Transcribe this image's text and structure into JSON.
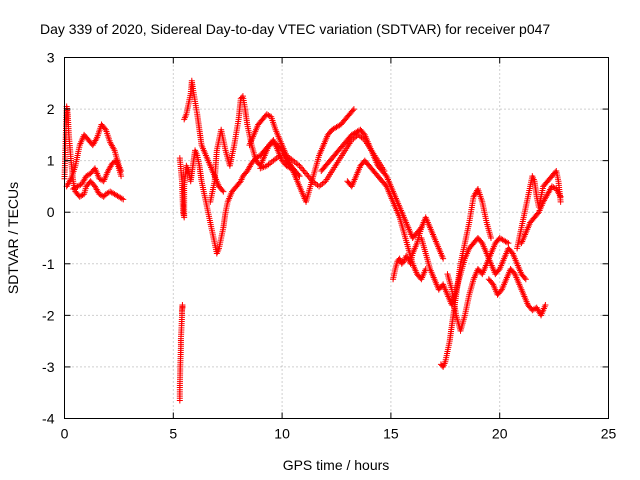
{
  "chart_data": {
    "type": "scatter",
    "title": "Day 339 of 2020, Sidereal Day-to-day VTEC variation (SDTVAR) for receiver p047",
    "xlabel": "GPS time / hours",
    "ylabel": "SDTVAR / TECUs",
    "xlim": [
      0,
      25
    ],
    "ylim": [
      -4,
      3
    ],
    "xticks": [
      0,
      5,
      10,
      15,
      20,
      25
    ],
    "yticks": [
      -4,
      -3,
      -2,
      -1,
      0,
      1,
      2,
      3
    ],
    "xtick_labels": [
      "0",
      "5",
      "10",
      "15",
      "20",
      "25"
    ],
    "ytick_labels": [
      "-4",
      "-3",
      "-2",
      "-1",
      "0",
      "1",
      "2",
      "3"
    ],
    "grid": true,
    "marker": "+",
    "colors": {
      "series": "#ff0000",
      "grid": "#a0a0a0",
      "axis": "#000000"
    },
    "series": [
      {
        "name": "SDTVAR p047",
        "x": [
          0.0,
          0.1,
          0.15,
          0.2,
          0.3,
          0.4,
          0.5,
          0.7,
          0.9,
          1.0,
          1.2,
          1.4,
          1.6,
          1.8,
          1.9,
          2.1,
          2.3,
          2.5,
          2.7
        ],
        "y": [
          0.65,
          2.05,
          1.9,
          1.5,
          1.0,
          0.6,
          0.4,
          0.3,
          0.35,
          0.5,
          0.6,
          0.5,
          0.35,
          0.3,
          0.35,
          0.4,
          0.35,
          0.3,
          0.25
        ]
      },
      {
        "name": "SDTVAR p047",
        "x": [
          0.1,
          0.3,
          0.5,
          0.7,
          0.9,
          1.1,
          1.3,
          1.5,
          1.7,
          1.9,
          2.1,
          2.3,
          2.5,
          2.6
        ],
        "y": [
          0.5,
          0.65,
          0.9,
          1.3,
          1.5,
          1.4,
          1.3,
          1.45,
          1.7,
          1.6,
          1.35,
          1.2,
          0.9,
          0.8
        ]
      },
      {
        "name": "SDTVAR p047",
        "x": [
          0.4,
          0.6,
          0.8,
          1.0,
          1.2,
          1.4,
          1.6,
          1.8,
          2.0,
          2.2,
          2.4,
          2.6
        ],
        "y": [
          0.45,
          0.5,
          0.55,
          0.7,
          0.75,
          0.85,
          0.65,
          0.6,
          0.8,
          0.95,
          1.0,
          0.7
        ]
      },
      {
        "name": "SDTVAR p047",
        "x": [
          5.3,
          5.3,
          5.32,
          5.35,
          5.35,
          5.38,
          5.4,
          5.4,
          5.42,
          5.42
        ],
        "y": [
          -3.65,
          -3.4,
          -3.0,
          -2.6,
          -2.45,
          -2.2,
          -2.0,
          -1.9,
          -1.85,
          -1.8
        ]
      },
      {
        "name": "SDTVAR p047",
        "x": [
          5.3,
          5.4,
          5.45,
          5.5,
          5.5,
          5.6,
          5.7,
          5.8,
          5.9,
          6.0,
          6.1,
          6.2,
          6.3,
          6.4,
          6.5,
          6.6,
          6.7,
          6.8,
          6.9,
          7.0,
          7.1,
          7.2,
          7.3,
          7.4,
          7.5,
          7.7,
          7.9,
          8.1,
          8.2,
          8.4,
          8.6,
          8.8,
          9.0,
          9.2,
          9.4,
          9.6,
          9.8,
          10.0,
          10.2,
          10.4,
          10.6,
          10.8
        ],
        "y": [
          1.05,
          0.6,
          0.0,
          -0.1,
          0.5,
          0.9,
          0.8,
          0.6,
          0.9,
          1.2,
          1.1,
          0.9,
          0.6,
          0.4,
          0.2,
          0.0,
          -0.2,
          -0.4,
          -0.6,
          -0.8,
          -0.7,
          -0.5,
          -0.3,
          0.0,
          0.2,
          0.4,
          0.5,
          0.6,
          0.7,
          0.8,
          0.95,
          1.05,
          1.1,
          1.2,
          1.3,
          1.35,
          1.3,
          1.2,
          1.0,
          0.9,
          0.8,
          0.7
        ]
      },
      {
        "name": "SDTVAR p047",
        "x": [
          5.5,
          5.6,
          5.7,
          5.8,
          5.85,
          5.9,
          6.0,
          6.1,
          6.2,
          6.3,
          6.5,
          6.7,
          6.9,
          7.1,
          7.3
        ],
        "y": [
          1.8,
          1.9,
          2.1,
          2.3,
          2.55,
          2.4,
          2.15,
          1.9,
          1.6,
          1.3,
          1.1,
          0.9,
          0.7,
          0.5,
          0.4
        ]
      },
      {
        "name": "SDTVAR p047",
        "x": [
          6.7,
          6.9,
          7.0,
          7.2,
          7.4,
          7.6,
          7.8,
          8.0,
          8.1,
          8.2,
          8.3,
          8.4,
          8.6,
          8.8,
          9.0,
          9.2,
          9.4,
          9.6,
          9.8,
          10.0,
          10.2,
          10.4,
          10.6
        ],
        "y": [
          0.2,
          0.6,
          1.2,
          1.6,
          1.2,
          0.9,
          1.3,
          1.8,
          2.2,
          2.25,
          2.0,
          1.7,
          1.3,
          1.0,
          0.9,
          1.1,
          1.3,
          1.4,
          1.2,
          1.0,
          0.9,
          0.85,
          0.8
        ]
      },
      {
        "name": "SDTVAR p047",
        "x": [
          8.5,
          8.7,
          8.9,
          9.1,
          9.3,
          9.5,
          9.7,
          9.9,
          10.1,
          10.3,
          10.5,
          10.7,
          10.9,
          11.1,
          11.3,
          11.5,
          11.7,
          11.9,
          12.1,
          12.3,
          12.5,
          12.7,
          12.9,
          13.1,
          13.3
        ],
        "y": [
          1.3,
          1.5,
          1.7,
          1.8,
          1.9,
          1.85,
          1.6,
          1.4,
          1.2,
          1.0,
          0.8,
          0.6,
          0.4,
          0.2,
          0.5,
          0.8,
          1.1,
          1.3,
          1.5,
          1.6,
          1.65,
          1.7,
          1.8,
          1.9,
          2.0
        ]
      },
      {
        "name": "SDTVAR p047",
        "x": [
          9.0,
          9.3,
          9.6,
          9.9,
          10.2,
          10.5,
          10.8,
          11.1,
          11.4,
          11.7,
          12.0,
          12.3,
          12.6,
          12.9,
          13.2,
          13.5,
          13.8,
          14.1,
          14.4,
          14.7
        ],
        "y": [
          0.85,
          0.9,
          1.0,
          1.1,
          1.1,
          1.0,
          0.9,
          0.75,
          0.6,
          0.5,
          0.6,
          0.8,
          1.0,
          1.2,
          1.4,
          1.5,
          1.4,
          1.2,
          1.0,
          0.8
        ]
      },
      {
        "name": "SDTVAR p047",
        "x": [
          11.8,
          12.0,
          12.2,
          12.4,
          12.6,
          12.8,
          13.0,
          13.2,
          13.4,
          13.6,
          13.8,
          14.0,
          14.2,
          14.4,
          14.6,
          14.8,
          15.0,
          15.2,
          15.4,
          15.6,
          15.8,
          16.0,
          16.2,
          16.4
        ],
        "y": [
          0.8,
          0.9,
          1.0,
          1.1,
          1.2,
          1.3,
          1.4,
          1.5,
          1.55,
          1.6,
          1.5,
          1.3,
          1.1,
          0.9,
          0.8,
          0.7,
          0.5,
          0.3,
          0.1,
          -0.1,
          -0.3,
          -0.5,
          -0.4,
          -0.3
        ]
      },
      {
        "name": "SDTVAR p047",
        "x": [
          13.0,
          13.2,
          13.4,
          13.6,
          13.8,
          14.0,
          14.2,
          14.4,
          14.6,
          14.8,
          15.0,
          15.2,
          15.4,
          15.6,
          15.8,
          16.0,
          16.2,
          16.4,
          16.6
        ],
        "y": [
          0.6,
          0.5,
          0.7,
          0.9,
          1.0,
          0.9,
          0.8,
          0.7,
          0.6,
          0.5,
          0.3,
          0.1,
          -0.1,
          -0.4,
          -0.7,
          -1.0,
          -1.2,
          -1.3,
          -1.1
        ]
      },
      {
        "name": "SDTVAR p047",
        "x": [
          15.1,
          15.2,
          15.3,
          15.4,
          15.5,
          15.6,
          15.7,
          15.8,
          15.9,
          16.0,
          16.2,
          16.4,
          16.6,
          16.8,
          17.0,
          17.2,
          17.4
        ],
        "y": [
          -1.3,
          -1.1,
          -0.95,
          -0.9,
          -1.0,
          -0.95,
          -0.85,
          -0.9,
          -1.0,
          -0.8,
          -0.6,
          -0.3,
          -0.1,
          -0.3,
          -0.5,
          -0.7,
          -0.9
        ]
      },
      {
        "name": "SDTVAR p047",
        "x": [
          16.4,
          16.6,
          16.8,
          17.0,
          17.2,
          17.4,
          17.6,
          17.8,
          18.0,
          18.2,
          18.4,
          18.6,
          18.8,
          19.0,
          19.2,
          19.4,
          19.6,
          19.8,
          20.0,
          20.2,
          20.4,
          20.6,
          20.8,
          21.0,
          21.2
        ],
        "y": [
          -0.5,
          -0.8,
          -1.1,
          -1.3,
          -1.5,
          -1.4,
          -1.6,
          -1.8,
          -1.5,
          -1.2,
          -0.9,
          -0.7,
          -0.6,
          -0.5,
          -0.6,
          -0.8,
          -1.0,
          -1.2,
          -1.1,
          -0.9,
          -0.7,
          -0.8,
          -1.0,
          -1.2,
          -1.3
        ]
      },
      {
        "name": "SDTVAR p047",
        "x": [
          17.3,
          17.4,
          17.5,
          17.6,
          17.7,
          17.8,
          17.9,
          18.0,
          18.1,
          18.2,
          18.4,
          18.6,
          18.8,
          19.0,
          19.2,
          19.4,
          19.6
        ],
        "y": [
          -2.95,
          -3.0,
          -2.9,
          -2.7,
          -2.5,
          -2.2,
          -1.9,
          -1.6,
          -1.3,
          -1.0,
          -0.6,
          -0.2,
          0.3,
          0.45,
          0.2,
          -0.2,
          -0.5
        ]
      },
      {
        "name": "SDTVAR p047",
        "x": [
          17.6,
          17.8,
          18.0,
          18.2,
          18.4,
          18.6,
          18.8,
          19.0,
          19.2,
          19.4,
          19.6,
          19.8,
          20.0,
          20.2,
          20.4
        ],
        "y": [
          -1.2,
          -1.5,
          -2.0,
          -2.3,
          -2.0,
          -1.6,
          -1.3,
          -1.1,
          -1.2,
          -1.0,
          -0.8,
          -0.6,
          -0.5,
          -0.55,
          -0.6
        ]
      },
      {
        "name": "SDTVAR p047",
        "x": [
          19.5,
          19.7,
          19.9,
          20.1,
          20.3,
          20.5,
          20.7,
          20.9,
          21.1,
          21.3,
          21.5,
          21.7,
          21.9,
          22.1
        ],
        "y": [
          -1.3,
          -1.4,
          -1.6,
          -1.5,
          -1.3,
          -1.1,
          -1.2,
          -1.4,
          -1.6,
          -1.8,
          -1.9,
          -1.85,
          -2.0,
          -1.8
        ]
      },
      {
        "name": "SDTVAR p047",
        "x": [
          20.8,
          21.0,
          21.2,
          21.4,
          21.5,
          21.6,
          21.7,
          21.8,
          21.9,
          22.0,
          22.2,
          22.4,
          22.6,
          22.7,
          22.8
        ],
        "y": [
          -0.7,
          -0.3,
          0.1,
          0.5,
          0.7,
          0.6,
          0.3,
          0.1,
          0.3,
          0.5,
          0.6,
          0.7,
          0.8,
          0.6,
          0.2
        ]
      },
      {
        "name": "SDTVAR p047",
        "x": [
          21.0,
          21.2,
          21.4,
          21.6,
          21.8,
          22.0,
          22.2,
          22.4,
          22.6,
          22.8
        ],
        "y": [
          -0.6,
          -0.4,
          -0.2,
          -0.1,
          0.0,
          0.2,
          0.35,
          0.5,
          0.45,
          0.3
        ]
      }
    ]
  }
}
